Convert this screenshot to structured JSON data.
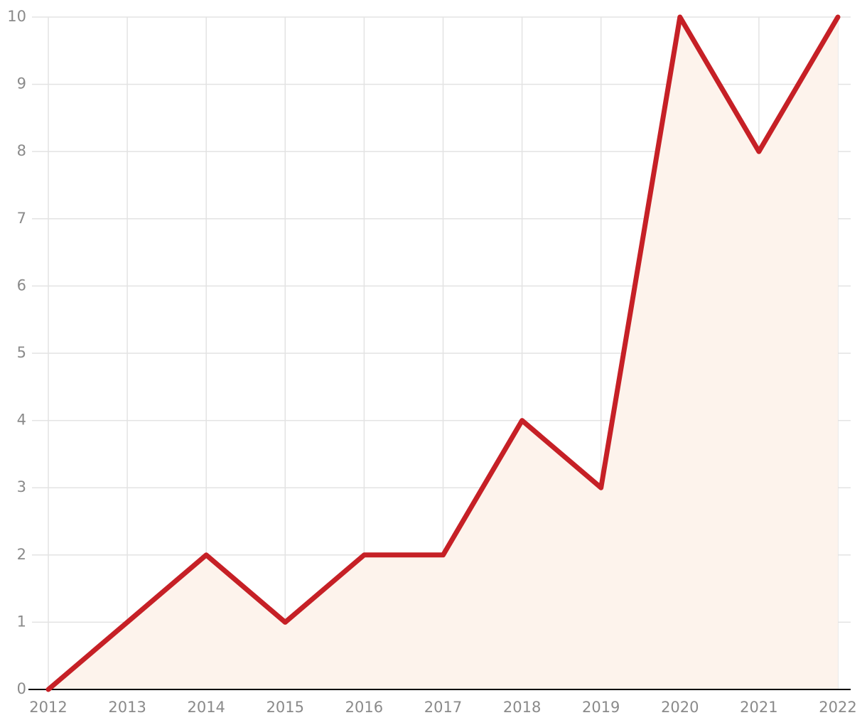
{
  "chart_data": {
    "type": "area",
    "x": [
      2012,
      2013,
      2014,
      2015,
      2016,
      2017,
      2018,
      2019,
      2020,
      2021,
      2022
    ],
    "series": [
      {
        "values": [
          0,
          1,
          2,
          1,
          2,
          2,
          4,
          3,
          10,
          8,
          10
        ],
        "color": "#c62026",
        "fill_color": "#fdf3ec"
      }
    ],
    "xlim": [
      2012,
      2022
    ],
    "xticks": [
      2012,
      2013,
      2014,
      2015,
      2016,
      2017,
      2018,
      2019,
      2020,
      2021,
      2022
    ],
    "ylim": [
      0,
      10
    ],
    "yticks": [
      0,
      1,
      2,
      3,
      4,
      5,
      6,
      7,
      8,
      9,
      10
    ],
    "grid": true
  }
}
